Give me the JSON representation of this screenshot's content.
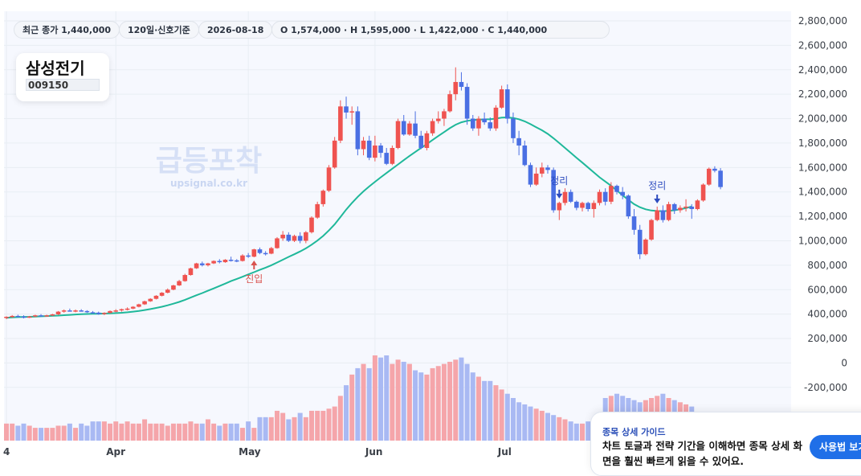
{
  "header": {
    "last_close": "최근 종가 1,440,000",
    "period": "120일·신호기준",
    "date": "2026-08-18",
    "ohlc": "O 1,574,000 · H 1,595,000 · L 1,422,000 · C 1,440,000"
  },
  "stock": {
    "name": "삼성전기",
    "code": "009150"
  },
  "watermark": {
    "brand": "급등포착",
    "url": "upsignal.co.kr"
  },
  "signals": {
    "entry": "진입",
    "exit": "정리"
  },
  "guide": {
    "title": "종목 상세 가이드",
    "text": "차트 토글과 전략 기간을 이해하면 종목 상세 화면을 훨씬 빠르게 읽을 수 있어요.",
    "button": "사용법 보기"
  },
  "colors": {
    "up": "#ef5350",
    "down": "#4a6fe3",
    "ma": "#1fb89a",
    "vol_up": "#f5a5aa",
    "vol_down": "#a9b9f3",
    "grid": "#e8edf3",
    "plot_bg": "#f6f8fe",
    "entry": "#d9534f",
    "exit": "#2c4bbf"
  },
  "chart_data": {
    "type": "candlestick",
    "ylim": [
      -300000,
      2800000
    ],
    "ytick_labels": [
      "2,800,000",
      "2,600,000",
      "2,400,000",
      "2,200,000",
      "2,000,000",
      "1,800,000",
      "1,600,000",
      "1,400,000",
      "1,200,000",
      "1,000,000",
      "800,000",
      "600,000",
      "400,000",
      "200,000",
      "0",
      "-200,000"
    ],
    "ytick_values": [
      2800000,
      2600000,
      2400000,
      2200000,
      2000000,
      1800000,
      1600000,
      1400000,
      1200000,
      1000000,
      800000,
      600000,
      400000,
      200000,
      0,
      -200000
    ],
    "xtick_labels": [
      "4",
      "Apr",
      "May",
      "Jun",
      "Jul"
    ],
    "xtick_index": [
      0,
      19,
      42,
      64,
      87
    ],
    "grid": true,
    "series": [
      {
        "name": "가격",
        "values": [
          [
            370000,
            382000,
            358000,
            378000
          ],
          [
            378000,
            392000,
            370000,
            385000
          ],
          [
            385000,
            395000,
            375000,
            380000
          ],
          [
            380000,
            390000,
            365000,
            372000
          ],
          [
            372000,
            385000,
            368000,
            380000
          ],
          [
            380000,
            395000,
            375000,
            390000
          ],
          [
            390000,
            400000,
            380000,
            385000
          ],
          [
            385000,
            395000,
            378000,
            390000
          ],
          [
            390000,
            402000,
            385000,
            398000
          ],
          [
            398000,
            425000,
            392000,
            420000
          ],
          [
            420000,
            438000,
            412000,
            430000
          ],
          [
            430000,
            445000,
            420000,
            425000
          ],
          [
            425000,
            438000,
            415000,
            430000
          ],
          [
            430000,
            440000,
            420000,
            425000
          ],
          [
            425000,
            432000,
            410000,
            415000
          ],
          [
            415000,
            425000,
            405000,
            412000
          ],
          [
            412000,
            420000,
            395000,
            400000
          ],
          [
            400000,
            415000,
            392000,
            410000
          ],
          [
            410000,
            430000,
            405000,
            425000
          ],
          [
            425000,
            440000,
            415000,
            430000
          ],
          [
            430000,
            445000,
            420000,
            440000
          ],
          [
            440000,
            455000,
            430000,
            445000
          ],
          [
            445000,
            465000,
            440000,
            460000
          ],
          [
            460000,
            485000,
            455000,
            480000
          ],
          [
            480000,
            510000,
            475000,
            505000
          ],
          [
            505000,
            530000,
            500000,
            525000
          ],
          [
            525000,
            555000,
            520000,
            550000
          ],
          [
            550000,
            580000,
            545000,
            575000
          ],
          [
            575000,
            610000,
            570000,
            600000
          ],
          [
            600000,
            640000,
            595000,
            635000
          ],
          [
            635000,
            680000,
            630000,
            670000
          ],
          [
            670000,
            730000,
            665000,
            720000
          ],
          [
            720000,
            780000,
            715000,
            775000
          ],
          [
            775000,
            820000,
            770000,
            815000
          ],
          [
            815000,
            830000,
            790000,
            800000
          ],
          [
            800000,
            820000,
            790000,
            815000
          ],
          [
            815000,
            840000,
            810000,
            835000
          ],
          [
            835000,
            850000,
            815000,
            825000
          ],
          [
            825000,
            850000,
            820000,
            845000
          ],
          [
            845000,
            870000,
            830000,
            840000
          ],
          [
            840000,
            850000,
            825000,
            835000
          ],
          [
            835000,
            890000,
            830000,
            880000
          ],
          [
            880000,
            900000,
            860000,
            870000
          ],
          [
            870000,
            935000,
            865000,
            930000
          ],
          [
            930000,
            945000,
            890000,
            900000
          ],
          [
            900000,
            915000,
            880000,
            895000
          ],
          [
            895000,
            950000,
            890000,
            940000
          ],
          [
            940000,
            1030000,
            935000,
            1020000
          ],
          [
            1020000,
            1080000,
            1000000,
            1050000
          ],
          [
            1050000,
            1070000,
            990000,
            1000000
          ],
          [
            1000000,
            1050000,
            990000,
            1040000
          ],
          [
            1040000,
            1070000,
            980000,
            1000000
          ],
          [
            1000000,
            1080000,
            980000,
            1070000
          ],
          [
            1070000,
            1200000,
            1060000,
            1190000
          ],
          [
            1190000,
            1320000,
            1180000,
            1300000
          ],
          [
            1300000,
            1420000,
            1280000,
            1410000
          ],
          [
            1410000,
            1620000,
            1400000,
            1600000
          ],
          [
            1600000,
            1850000,
            1590000,
            1820000
          ],
          [
            1820000,
            2150000,
            1800000,
            2100000
          ],
          [
            2100000,
            2180000,
            2000000,
            2050000
          ],
          [
            2050000,
            2100000,
            1950000,
            2060000
          ],
          [
            2060000,
            2100000,
            1700000,
            1750000
          ],
          [
            1750000,
            1850000,
            1700000,
            1820000
          ],
          [
            1820000,
            1860000,
            1660000,
            1680000
          ],
          [
            1680000,
            1860000,
            1650000,
            1780000
          ],
          [
            1780000,
            1800000,
            1680000,
            1720000
          ],
          [
            1720000,
            1760000,
            1620000,
            1630000
          ],
          [
            1630000,
            1780000,
            1620000,
            1760000
          ],
          [
            1760000,
            2000000,
            1750000,
            1980000
          ],
          [
            1980000,
            2030000,
            1860000,
            1870000
          ],
          [
            1870000,
            1980000,
            1860000,
            1960000
          ],
          [
            1960000,
            2060000,
            1840000,
            1860000
          ],
          [
            1860000,
            1900000,
            1750000,
            1760000
          ],
          [
            1760000,
            1900000,
            1740000,
            1880000
          ],
          [
            1880000,
            2000000,
            1860000,
            1980000
          ],
          [
            1980000,
            2060000,
            1960000,
            2000000
          ],
          [
            2000000,
            2080000,
            1940000,
            2060000
          ],
          [
            2060000,
            2230000,
            2050000,
            2200000
          ],
          [
            2200000,
            2420000,
            2150000,
            2300000
          ],
          [
            2300000,
            2380000,
            2230000,
            2260000
          ],
          [
            2260000,
            2290000,
            1950000,
            2000000
          ],
          [
            2000000,
            2030000,
            1900000,
            1920000
          ],
          [
            1920000,
            2020000,
            1860000,
            2000000
          ],
          [
            2000000,
            2050000,
            1950000,
            1970000
          ],
          [
            1970000,
            2010000,
            1900000,
            1920000
          ],
          [
            1920000,
            2110000,
            1900000,
            2090000
          ],
          [
            2090000,
            2270000,
            2080000,
            2240000
          ],
          [
            2240000,
            2280000,
            1960000,
            2000000
          ],
          [
            2000000,
            2050000,
            1800000,
            1840000
          ],
          [
            1840000,
            1900000,
            1700000,
            1780000
          ],
          [
            1780000,
            1820000,
            1610000,
            1620000
          ],
          [
            1620000,
            1640000,
            1440000,
            1460000
          ],
          [
            1460000,
            1600000,
            1450000,
            1550000
          ],
          [
            1550000,
            1640000,
            1520000,
            1600000
          ],
          [
            1600000,
            1620000,
            1550000,
            1580000
          ],
          [
            1580000,
            1600000,
            1230000,
            1250000
          ],
          [
            1250000,
            1320000,
            1170000,
            1310000
          ],
          [
            1310000,
            1430000,
            1290000,
            1400000
          ],
          [
            1400000,
            1420000,
            1310000,
            1320000
          ],
          [
            1320000,
            1330000,
            1250000,
            1270000
          ],
          [
            1270000,
            1320000,
            1240000,
            1310000
          ],
          [
            1310000,
            1320000,
            1240000,
            1260000
          ],
          [
            1260000,
            1330000,
            1190000,
            1310000
          ],
          [
            1310000,
            1420000,
            1290000,
            1400000
          ],
          [
            1400000,
            1430000,
            1290000,
            1320000
          ],
          [
            1320000,
            1480000,
            1300000,
            1450000
          ],
          [
            1450000,
            1460000,
            1380000,
            1400000
          ],
          [
            1400000,
            1440000,
            1340000,
            1370000
          ],
          [
            1370000,
            1380000,
            1180000,
            1200000
          ],
          [
            1200000,
            1260000,
            1050000,
            1090000
          ],
          [
            1090000,
            1130000,
            850000,
            890000
          ],
          [
            890000,
            1020000,
            880000,
            1010000
          ],
          [
            1010000,
            1180000,
            1000000,
            1170000
          ],
          [
            1170000,
            1280000,
            1160000,
            1250000
          ],
          [
            1250000,
            1290000,
            1150000,
            1170000
          ],
          [
            1170000,
            1320000,
            1160000,
            1300000
          ],
          [
            1300000,
            1310000,
            1220000,
            1250000
          ],
          [
            1250000,
            1290000,
            1230000,
            1270000
          ],
          [
            1270000,
            1340000,
            1240000,
            1280000
          ],
          [
            1280000,
            1300000,
            1180000,
            1260000
          ],
          [
            1260000,
            1340000,
            1250000,
            1330000
          ],
          [
            1330000,
            1470000,
            1320000,
            1460000
          ],
          [
            1460000,
            1600000,
            1450000,
            1590000
          ],
          [
            1590000,
            1610000,
            1560000,
            1574000
          ],
          [
            1574000,
            1595000,
            1422000,
            1440000
          ]
        ]
      },
      {
        "name": "이동평균",
        "values": [
          370000,
          373000,
          375000,
          377000,
          378000,
          380000,
          382000,
          384000,
          386000,
          388000,
          391000,
          394000,
          397000,
          399000,
          401000,
          402000,
          403000,
          404000,
          406000,
          408000,
          411000,
          415000,
          420000,
          426000,
          433000,
          441000,
          450000,
          460000,
          472000,
          485000,
          500000,
          517000,
          535000,
          554000,
          572000,
          591000,
          610000,
          630000,
          650000,
          670000,
          688000,
          706000,
          725000,
          743000,
          762000,
          780000,
          800000,
          822000,
          845000,
          868000,
          890000,
          913000,
          938000,
          968000,
          1002000,
          1040000,
          1085000,
          1135000,
          1195000,
          1255000,
          1310000,
          1360000,
          1405000,
          1445000,
          1483000,
          1520000,
          1555000,
          1590000,
          1625000,
          1660000,
          1695000,
          1728000,
          1760000,
          1792000,
          1825000,
          1858000,
          1890000,
          1922000,
          1950000,
          1970000,
          1982000,
          1988000,
          1992000,
          1994000,
          1996000,
          2000000,
          2008000,
          2010000,
          2005000,
          1995000,
          1978000,
          1955000,
          1930000,
          1905000,
          1875000,
          1840000,
          1800000,
          1760000,
          1720000,
          1680000,
          1640000,
          1600000,
          1560000,
          1520000,
          1485000,
          1450000,
          1412000,
          1372000,
          1335000,
          1300000,
          1275000,
          1258000,
          1248000,
          1244000,
          1243000,
          1245000,
          1250000,
          1258000,
          1268000,
          1280000
        ]
      },
      {
        "name": "거래량",
        "values": [
          8,
          8,
          7,
          8,
          7,
          6,
          6,
          6,
          6,
          7,
          7,
          8,
          6,
          8,
          7,
          9,
          9,
          9,
          8,
          9,
          8,
          9,
          8,
          8,
          10,
          8,
          8,
          8,
          7,
          8,
          8,
          8,
          9,
          8,
          8,
          10,
          8,
          7,
          8,
          8,
          8,
          6,
          9,
          6,
          11,
          11,
          11,
          14,
          13,
          10,
          11,
          13,
          11,
          14,
          14,
          14,
          15,
          16,
          21,
          26,
          31,
          34,
          36,
          34,
          40,
          39,
          40,
          36,
          38,
          37,
          36,
          33,
          32,
          31,
          34,
          35,
          36,
          37,
          38,
          39,
          36,
          32,
          30,
          28,
          28,
          26,
          24,
          22,
          20,
          18,
          17,
          16,
          15,
          14,
          13,
          12,
          11,
          10,
          9,
          8,
          8,
          9,
          10,
          11,
          20,
          21,
          22,
          21,
          20,
          19,
          18,
          19,
          20,
          21,
          22,
          20,
          19,
          18,
          17,
          16
        ]
      }
    ],
    "annotations": [
      {
        "text": "진입",
        "index": 43,
        "kind": "entry"
      },
      {
        "text": "정리",
        "index": 96,
        "kind": "exit"
      },
      {
        "text": "정리",
        "index": 113,
        "kind": "exit"
      }
    ]
  }
}
